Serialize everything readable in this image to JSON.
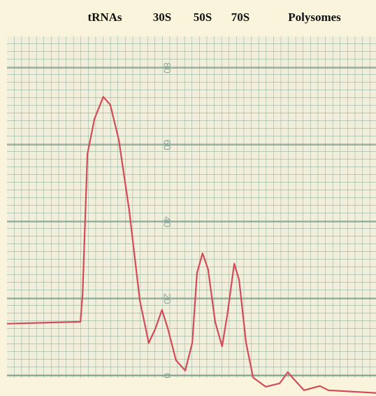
{
  "chart_data": {
    "type": "line",
    "annotations": [
      "tRNAs",
      "30S",
      "50S",
      "70S",
      "Polysomes"
    ],
    "x": [
      0,
      19.9,
      20.5,
      21.8,
      23.7,
      26.1,
      28,
      30.3,
      33.1,
      36,
      38.4,
      40.2,
      42,
      43.6,
      45.8,
      48.3,
      50.2,
      51.5,
      53,
      54.5,
      56.4,
      58.3,
      59.7,
      61.6,
      62.9,
      64.8,
      66.7,
      70.1,
      73.9,
      76.1,
      77.7,
      80.5,
      84.8,
      87.1,
      100
    ],
    "series": [
      {
        "color": "#d24b57",
        "values": [
          13.5,
          14,
          21.3,
          57.6,
          66.7,
          72.5,
          70.4,
          61.3,
          43.1,
          19.5,
          8.5,
          12.2,
          17.1,
          12.2,
          4,
          1.3,
          8.5,
          26.7,
          31.8,
          27.6,
          14,
          7.6,
          15.8,
          29.1,
          24.9,
          8.5,
          -0.5,
          -2.9,
          -2,
          0.9,
          -0.9,
          -3.8,
          -2.7,
          -3.8,
          -4.5
        ]
      }
    ],
    "xlim": [
      0,
      100
    ],
    "ylim": [
      -5.3,
      88.2
    ],
    "yticks": [
      0,
      20,
      40,
      60,
      80
    ],
    "grid": true
  }
}
